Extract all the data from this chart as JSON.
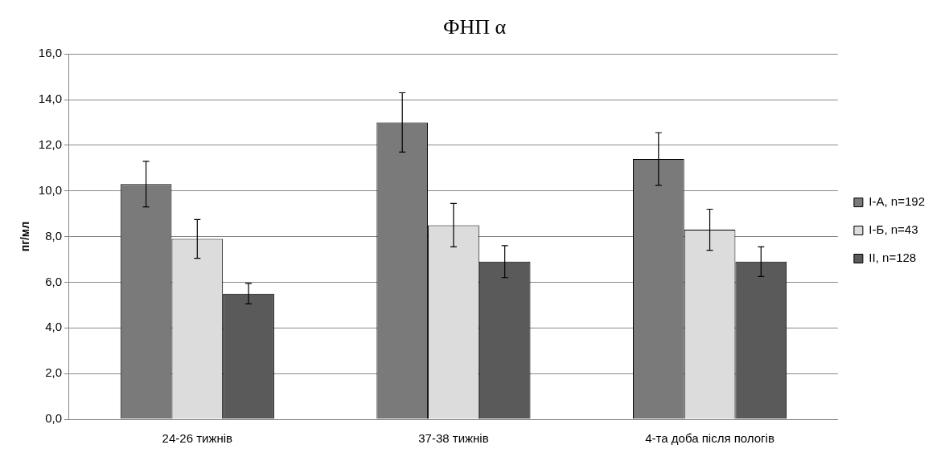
{
  "chart_data": {
    "type": "bar",
    "title": "ФНП α",
    "ylabel": "пг/мл",
    "categories": [
      "24-26 тижнів",
      "37-38 тижнів",
      "4-та доба після пологів"
    ],
    "series": [
      {
        "name": "І-А, n=192",
        "color": "#7a7a7a",
        "values": [
          10.3,
          13.0,
          11.4
        ],
        "errors": [
          1.0,
          1.3,
          1.15
        ]
      },
      {
        "name": "І-Б, n=43",
        "color": "#dcdcdc",
        "values": [
          7.9,
          8.5,
          8.3
        ],
        "errors": [
          0.85,
          0.95,
          0.9
        ]
      },
      {
        "name": "ІІ, n=128",
        "color": "#5a5a5a",
        "values": [
          5.5,
          6.9,
          6.9
        ],
        "errors": [
          0.45,
          0.7,
          0.65
        ]
      }
    ],
    "ylim": [
      0,
      16
    ],
    "yticks": [
      {
        "value": 0,
        "label": "0,0"
      },
      {
        "value": 2,
        "label": "2,0"
      },
      {
        "value": 4,
        "label": "4,0"
      },
      {
        "value": 6,
        "label": "6,0"
      },
      {
        "value": 8,
        "label": "8,0"
      },
      {
        "value": 10,
        "label": "10,0"
      },
      {
        "value": 12,
        "label": "12,0"
      },
      {
        "value": 14,
        "label": "14,0"
      },
      {
        "value": 16,
        "label": "16,0"
      }
    ],
    "grid": "y",
    "legend": "right"
  }
}
